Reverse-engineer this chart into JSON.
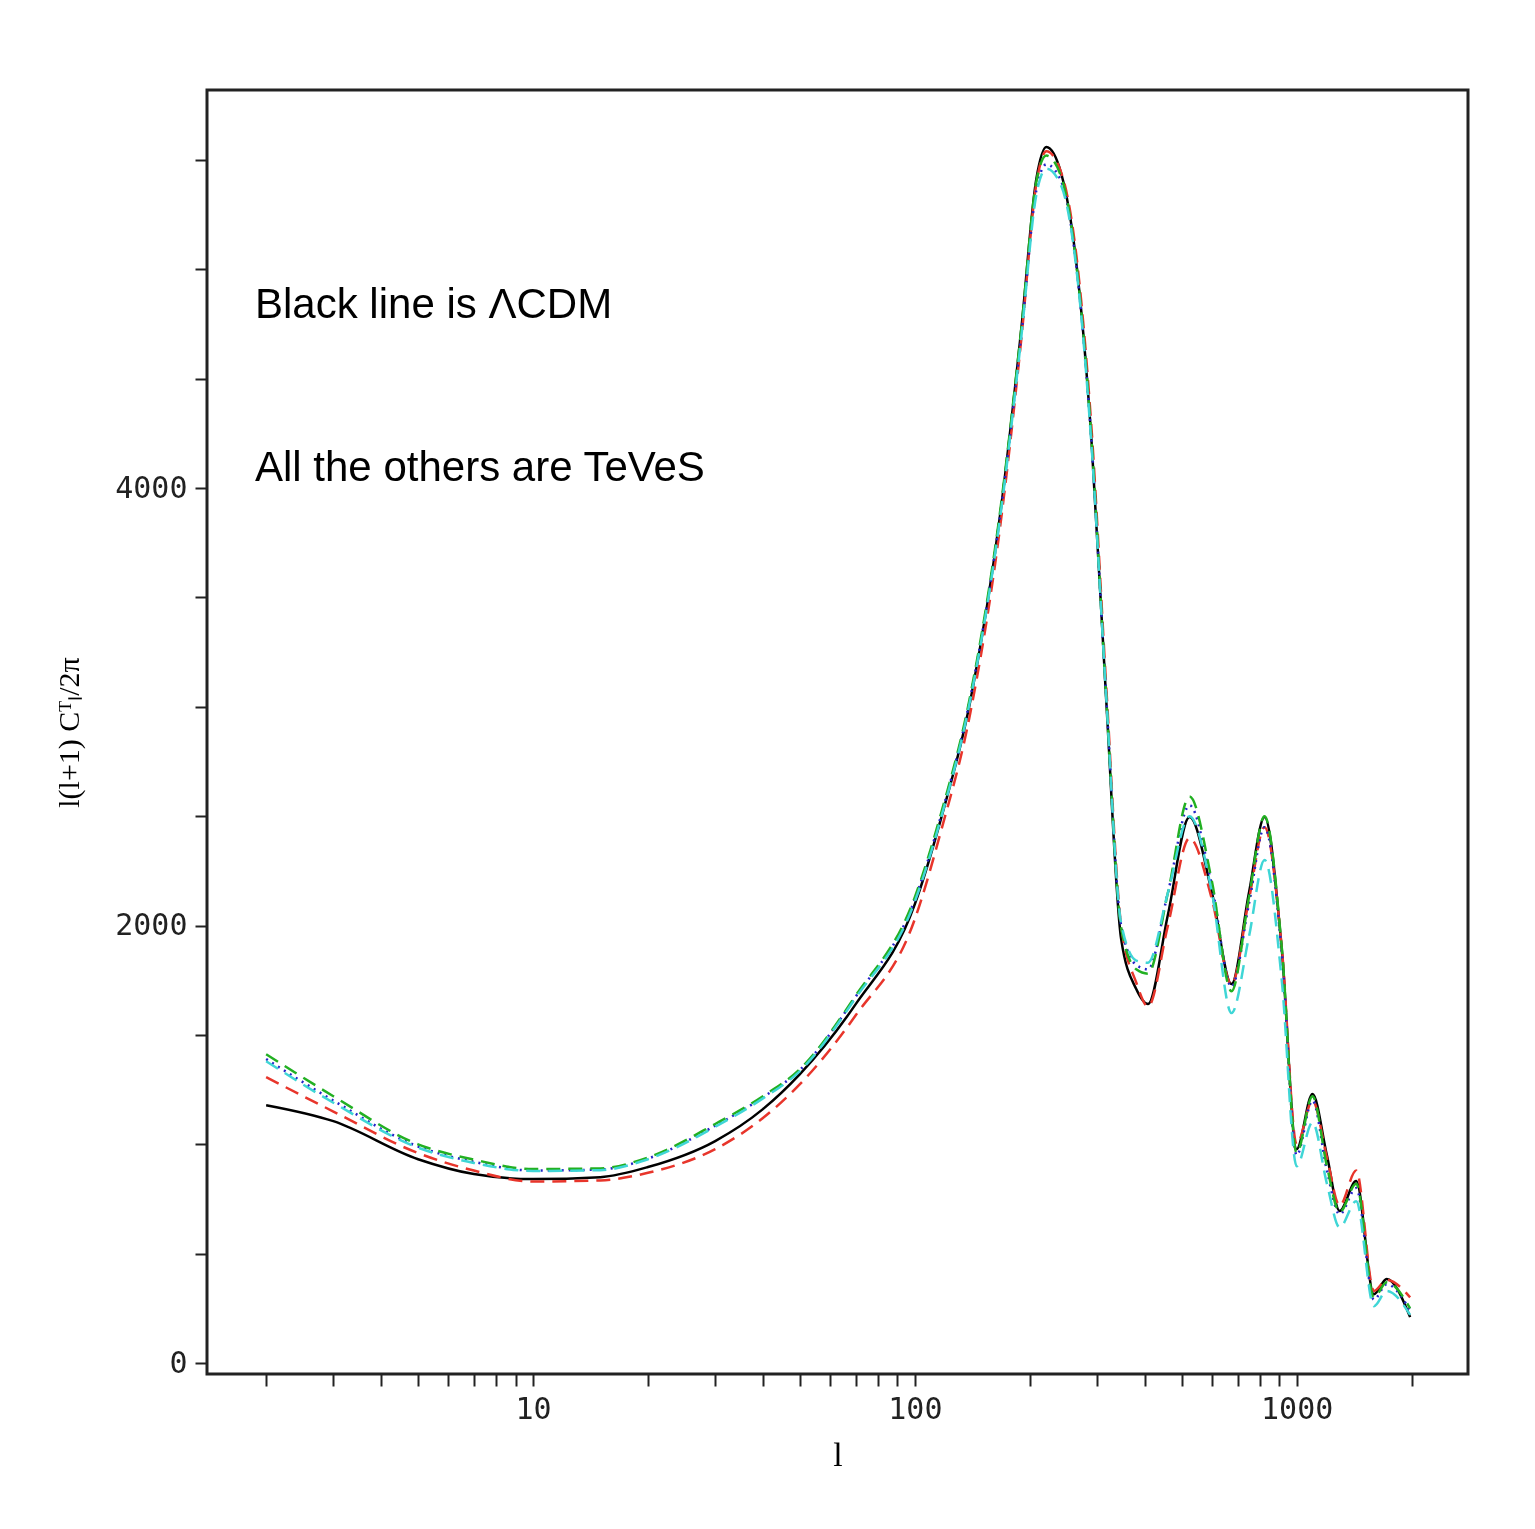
{
  "chart_data": {
    "type": "line",
    "xlabel": "l",
    "ylabel": "l(l+1) Cᵀₗ/2π",
    "log": "x",
    "grid": false,
    "legend": false,
    "xlim": [
      1.4,
      2810
    ],
    "ylim": [
      -50,
      5820
    ],
    "xticks": [
      {
        "value": 2,
        "label": null
      },
      {
        "value": 3,
        "label": null
      },
      {
        "value": 4,
        "label": null
      },
      {
        "value": 5,
        "label": null
      },
      {
        "value": 6,
        "label": null
      },
      {
        "value": 7,
        "label": null
      },
      {
        "value": 8,
        "label": null
      },
      {
        "value": 9,
        "label": null
      },
      10,
      {
        "value": 20,
        "label": null
      },
      {
        "value": 30,
        "label": null
      },
      {
        "value": 40,
        "label": null
      },
      {
        "value": 50,
        "label": null
      },
      {
        "value": 60,
        "label": null
      },
      {
        "value": 70,
        "label": null
      },
      {
        "value": 80,
        "label": null
      },
      {
        "value": 90,
        "label": null
      },
      100,
      {
        "value": 200,
        "label": null
      },
      {
        "value": 300,
        "label": null
      },
      {
        "value": 400,
        "label": null
      },
      {
        "value": 500,
        "label": null
      },
      {
        "value": 600,
        "label": null
      },
      {
        "value": 700,
        "label": null
      },
      {
        "value": 800,
        "label": null
      },
      {
        "value": 900,
        "label": null
      },
      1000,
      {
        "value": 2000,
        "label": null
      }
    ],
    "yticks": [
      0,
      {
        "value": 500,
        "label": null
      },
      {
        "value": 1000,
        "label": null
      },
      {
        "value": 1500,
        "label": null
      },
      2000,
      {
        "value": 2500,
        "label": null
      },
      {
        "value": 3000,
        "label": null
      },
      {
        "value": 3500,
        "label": null
      },
      4000,
      {
        "value": 4500,
        "label": null
      },
      {
        "value": 5000,
        "label": null
      },
      {
        "value": 5500,
        "label": null
      }
    ],
    "annotations": [
      "Black line is ΛCDM",
      "All the others are TeVeS"
    ],
    "x": [
      2,
      3,
      5,
      7,
      10,
      15,
      20,
      30,
      40,
      50,
      70,
      100,
      117,
      140,
      168,
      190,
      208,
      221,
      242,
      265,
      290,
      317,
      347,
      380,
      408,
      460,
      524,
      600,
      675,
      750,
      824,
      914,
      1000,
      1100,
      1200,
      1296,
      1432,
      1593,
      1721,
      1982
    ],
    "series": [
      {
        "color": "#000000",
        "line_style": "solid",
        "values": [
          1179,
          1106,
          932,
          864,
          841,
          850,
          896,
          1015,
          1161,
          1321,
          1641,
          2098,
          2487,
          3035,
          3904,
          4727,
          5412,
          5559,
          5435,
          5024,
          4224,
          3035,
          1938,
          1710,
          1641,
          2050,
          2496,
          2150,
          1733,
          2150,
          2496,
          1892,
          978,
          1230,
          950,
          695,
          832,
          315,
          384,
          210
        ]
      },
      {
        "color": "#e8352b",
        "line_style": "dashed",
        "values": [
          1307,
          1150,
          960,
          880,
          830,
          835,
          870,
          978,
          1120,
          1275,
          1590,
          2030,
          2430,
          2980,
          3850,
          4680,
          5390,
          5540,
          5440,
          5060,
          4280,
          3100,
          2000,
          1740,
          1630,
          2000,
          2400,
          2120,
          1730,
          2120,
          2450,
          1900,
          1000,
          1200,
          940,
          720,
          880,
          330,
          380,
          300
        ]
      },
      {
        "color": "#2424c8",
        "line_style": "dotted",
        "values": [
          1390,
          1200,
          990,
          920,
          880,
          885,
          935,
          1085,
          1215,
          1340,
          1675,
          2120,
          2500,
          3050,
          3900,
          4700,
          5360,
          5480,
          5400,
          5010,
          4220,
          3050,
          2000,
          1820,
          1800,
          2150,
          2550,
          2180,
          1720,
          2100,
          2450,
          1880,
          950,
          1200,
          880,
          680,
          800,
          290,
          360,
          240
        ]
      },
      {
        "color": "#22b022",
        "line_style": "dashed",
        "values": [
          1412,
          1220,
          1000,
          930,
          887,
          890,
          940,
          1093,
          1220,
          1344,
          1680,
          2130,
          2510,
          3060,
          3920,
          4730,
          5400,
          5520,
          5420,
          5020,
          4230,
          3050,
          1990,
          1800,
          1780,
          2150,
          2590,
          2200,
          1700,
          2130,
          2500,
          1900,
          960,
          1220,
          900,
          690,
          820,
          300,
          370,
          250
        ]
      },
      {
        "color": "#3fd6d6",
        "line_style": "dashed",
        "values": [
          1380,
          1190,
          985,
          915,
          878,
          882,
          932,
          1080,
          1210,
          1335,
          1670,
          2110,
          2490,
          3040,
          3890,
          4690,
          5340,
          5460,
          5380,
          5000,
          4200,
          3050,
          2010,
          1840,
          1830,
          2150,
          2500,
          2150,
          1600,
          1950,
          2300,
          1750,
          900,
          1100,
          820,
          620,
          740,
          260,
          330,
          220
        ]
      }
    ]
  }
}
